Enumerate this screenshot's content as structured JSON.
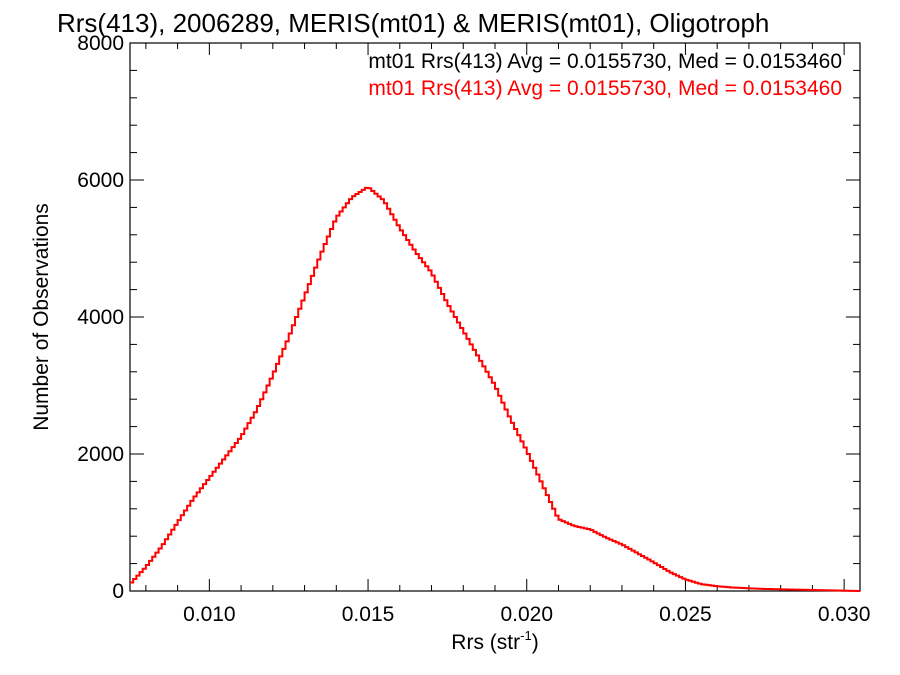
{
  "chart_data": {
    "type": "line",
    "title": "Rrs(413), 2006289, MERIS(mt01) & MERIS(mt01), Oligotroph",
    "xlabel": "Rrs (str",
    "xlabel_sup": "-1",
    "xlabel_end": ")",
    "ylabel": "Number of Observations",
    "xlim": [
      0.0075,
      0.0305
    ],
    "ylim": [
      0,
      8000
    ],
    "xticks": [
      0.01,
      0.015,
      0.02,
      0.025,
      0.03
    ],
    "xtick_labels": [
      "0.010",
      "0.015",
      "0.020",
      "0.025",
      "0.030"
    ],
    "yticks": [
      0,
      2000,
      4000,
      6000,
      8000
    ],
    "ytick_labels": [
      "0",
      "2000",
      "4000",
      "6000",
      "8000"
    ],
    "legend_placement": "top-right",
    "annotations": [
      {
        "text": "mt01 Rrs(413) Avg = 0.0155730, Med = 0.0153460",
        "color": "#000000"
      },
      {
        "text": "mt01 Rrs(413) Avg = 0.0155730, Med = 0.0153460",
        "color": "#ff0000"
      }
    ],
    "series": [
      {
        "color": "#ff0000",
        "step": true,
        "x": [
          0.0075,
          0.008,
          0.0085,
          0.009,
          0.0095,
          0.01,
          0.0105,
          0.011,
          0.0115,
          0.012,
          0.0125,
          0.013,
          0.0135,
          0.014,
          0.0145,
          0.015,
          0.0155,
          0.016,
          0.0165,
          0.017,
          0.0175,
          0.018,
          0.0185,
          0.019,
          0.0195,
          0.02,
          0.0205,
          0.021,
          0.0215,
          0.022,
          0.0225,
          0.023,
          0.0235,
          0.024,
          0.0245,
          0.025,
          0.0255,
          0.026,
          0.0265,
          0.027,
          0.0275,
          0.028,
          0.0285,
          0.029,
          0.0295,
          0.03,
          0.0305
        ],
        "y": [
          100,
          350,
          650,
          1000,
          1350,
          1650,
          1950,
          2250,
          2650,
          3150,
          3700,
          4300,
          4900,
          5450,
          5750,
          5900,
          5700,
          5300,
          4950,
          4650,
          4200,
          3800,
          3400,
          3000,
          2500,
          2050,
          1550,
          1050,
          950,
          900,
          780,
          680,
          550,
          420,
          280,
          170,
          100,
          70,
          50,
          40,
          30,
          25,
          20,
          15,
          10,
          5,
          0
        ]
      }
    ]
  }
}
